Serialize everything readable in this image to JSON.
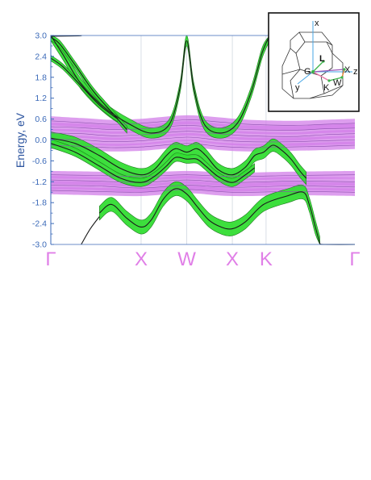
{
  "chart_data": {
    "type": "line",
    "title": "",
    "ylabel": "Energy, eV",
    "xlabel": "",
    "ylim": [
      -3.0,
      3.0
    ],
    "yticks": [
      "3.0",
      "2.4",
      "1.8",
      "1.2",
      "0.6",
      "0.0",
      "-0.6",
      "-1.2",
      "-1.8",
      "-2.4",
      "-3.0"
    ],
    "x_range": [
      0,
      100
    ],
    "kpoints": [
      {
        "label": "Γ",
        "x": 0
      },
      {
        "label": "X",
        "x": 29.7
      },
      {
        "label": "W",
        "x": 44.7
      },
      {
        "label": "X",
        "x": 59.7
      },
      {
        "label": "K",
        "x": 70.8
      },
      {
        "label": "Γ",
        "x": 100
      }
    ],
    "colors": {
      "spin_up_band": "#33dd33",
      "spin_down_band": "#d27ee8",
      "line": "#1a1a1a",
      "kpoint_label": "#e07fe7",
      "axis": "#3a69b8"
    },
    "series": [
      {
        "kind": "violet-ribbon",
        "points": [
          [
            0,
            0.55
          ],
          [
            10,
            0.5
          ],
          [
            20,
            0.45
          ],
          [
            30,
            0.48
          ],
          [
            44.7,
            0.58
          ],
          [
            55,
            0.52
          ],
          [
            65,
            0.45
          ],
          [
            80,
            0.42
          ],
          [
            90,
            0.45
          ],
          [
            100,
            0.48
          ]
        ],
        "halfwidth": 0.13
      },
      {
        "kind": "violet-ribbon",
        "points": [
          [
            0,
            0.38
          ],
          [
            10,
            0.35
          ],
          [
            20,
            0.3
          ],
          [
            30,
            0.32
          ],
          [
            44.7,
            0.42
          ],
          [
            55,
            0.35
          ],
          [
            65,
            0.3
          ],
          [
            80,
            0.28
          ],
          [
            90,
            0.32
          ],
          [
            100,
            0.34
          ]
        ],
        "halfwidth": 0.12
      },
      {
        "kind": "violet-ribbon",
        "points": [
          [
            0,
            0.2
          ],
          [
            10,
            0.18
          ],
          [
            20,
            0.12
          ],
          [
            30,
            0.15
          ],
          [
            44.7,
            0.25
          ],
          [
            55,
            0.18
          ],
          [
            65,
            0.12
          ],
          [
            80,
            0.1
          ],
          [
            90,
            0.15
          ],
          [
            100,
            0.18
          ]
        ],
        "halfwidth": 0.12
      },
      {
        "kind": "violet-ribbon",
        "points": [
          [
            0,
            0.02
          ],
          [
            10,
            0.0
          ],
          [
            20,
            -0.05
          ],
          [
            30,
            -0.02
          ],
          [
            44.7,
            0.08
          ],
          [
            55,
            0.0
          ],
          [
            65,
            -0.05
          ],
          [
            80,
            -0.05
          ],
          [
            90,
            -0.02
          ],
          [
            100,
            0.0
          ]
        ],
        "halfwidth": 0.12
      },
      {
        "kind": "violet-ribbon",
        "points": [
          [
            0,
            -0.15
          ],
          [
            10,
            -0.18
          ],
          [
            20,
            -0.22
          ],
          [
            30,
            -0.2
          ],
          [
            44.7,
            -0.1
          ],
          [
            55,
            -0.18
          ],
          [
            65,
            -0.22
          ],
          [
            80,
            -0.2
          ],
          [
            90,
            -0.18
          ],
          [
            100,
            -0.15
          ]
        ],
        "halfwidth": 0.11
      },
      {
        "kind": "violet-ribbon",
        "points": [
          [
            0,
            -1.0
          ],
          [
            15,
            -1.02
          ],
          [
            29.7,
            -1.05
          ],
          [
            44.7,
            -1.0
          ],
          [
            59.7,
            -1.05
          ],
          [
            80,
            -1.02
          ],
          [
            100,
            -1.0
          ]
        ],
        "halfwidth": 0.11
      },
      {
        "kind": "violet-ribbon",
        "points": [
          [
            0,
            -1.15
          ],
          [
            15,
            -1.18
          ],
          [
            29.7,
            -1.22
          ],
          [
            44.7,
            -1.15
          ],
          [
            59.7,
            -1.22
          ],
          [
            80,
            -1.18
          ],
          [
            100,
            -1.2
          ]
        ],
        "halfwidth": 0.12
      },
      {
        "kind": "violet-ribbon",
        "points": [
          [
            0,
            -1.3
          ],
          [
            15,
            -1.32
          ],
          [
            29.7,
            -1.38
          ],
          [
            44.7,
            -1.3
          ],
          [
            59.7,
            -1.36
          ],
          [
            80,
            -1.32
          ],
          [
            100,
            -1.35
          ]
        ],
        "halfwidth": 0.12
      },
      {
        "kind": "violet-ribbon",
        "points": [
          [
            0,
            -1.45
          ],
          [
            15,
            -1.48
          ],
          [
            29.7,
            -1.5
          ],
          [
            44.7,
            -1.42
          ],
          [
            59.7,
            -1.5
          ],
          [
            80,
            -1.48
          ],
          [
            100,
            -1.5
          ]
        ],
        "halfwidth": 0.11
      },
      {
        "kind": "green-ribbon",
        "points": [
          [
            0,
            3.0
          ],
          [
            4,
            2.45
          ],
          [
            10,
            1.6
          ],
          [
            18,
            0.9
          ],
          [
            26,
            0.45
          ],
          [
            33,
            0.2
          ],
          [
            39,
            0.45
          ],
          [
            42.5,
            1.5
          ],
          [
            44.7,
            2.85
          ],
          [
            47,
            1.5
          ],
          [
            50.5,
            0.45
          ],
          [
            56,
            0.2
          ],
          [
            61.5,
            0.5
          ],
          [
            66,
            1.4
          ],
          [
            69.5,
            2.5
          ],
          [
            72,
            3.0
          ]
        ],
        "halfwidth": 0.15
      },
      {
        "kind": "green-ribbon",
        "points": [
          [
            0,
            2.95
          ],
          [
            3,
            2.75
          ],
          [
            8,
            2.15
          ],
          [
            14,
            1.4
          ],
          [
            20,
            0.8
          ],
          [
            25,
            0.3
          ]
        ],
        "halfwidth": 0.1
      },
      {
        "kind": "green-ribbon",
        "points": [
          [
            0,
            2.35
          ],
          [
            4,
            2.1
          ],
          [
            10,
            1.55
          ],
          [
            16,
            1.0
          ],
          [
            22,
            0.6
          ]
        ],
        "halfwidth": 0.08
      },
      {
        "kind": "green-ribbon",
        "points": [
          [
            0,
            0.05
          ],
          [
            8,
            -0.1
          ],
          [
            16,
            -0.45
          ],
          [
            23,
            -0.82
          ],
          [
            29.7,
            -1.0
          ],
          [
            34,
            -0.85
          ],
          [
            38,
            -0.45
          ],
          [
            41,
            -0.25
          ],
          [
            44.7,
            -0.35
          ],
          [
            48,
            -0.25
          ],
          [
            51,
            -0.45
          ],
          [
            55,
            -0.85
          ],
          [
            59.7,
            -1.0
          ],
          [
            64,
            -0.78
          ],
          [
            67,
            -0.45
          ],
          [
            70,
            -0.35
          ],
          [
            73,
            -0.15
          ],
          [
            76,
            -0.3
          ],
          [
            79,
            -0.55
          ],
          [
            82,
            -0.9
          ],
          [
            84,
            -1.1
          ]
        ],
        "halfwidth": 0.18
      },
      {
        "kind": "green-ribbon",
        "points": [
          [
            0,
            -0.1
          ],
          [
            8,
            -0.35
          ],
          [
            16,
            -0.75
          ],
          [
            23,
            -1.1
          ],
          [
            29.7,
            -1.22
          ],
          [
            34,
            -1.05
          ],
          [
            38,
            -0.75
          ],
          [
            41,
            -0.5
          ],
          [
            44.7,
            -0.55
          ],
          [
            48,
            -0.55
          ],
          [
            51,
            -0.75
          ],
          [
            55,
            -1.05
          ],
          [
            59.7,
            -1.22
          ],
          [
            64,
            -1.0
          ],
          [
            67,
            -0.8
          ]
        ],
        "halfwidth": 0.12
      },
      {
        "kind": "green-ribbon",
        "points": [
          [
            16,
            -2.1
          ],
          [
            20,
            -1.85
          ],
          [
            25,
            -2.25
          ],
          [
            29.7,
            -2.5
          ],
          [
            33,
            -2.3
          ],
          [
            37,
            -1.7
          ],
          [
            41,
            -1.4
          ],
          [
            44.7,
            -1.55
          ],
          [
            48,
            -1.9
          ],
          [
            52,
            -2.3
          ],
          [
            56,
            -2.5
          ],
          [
            59.7,
            -2.55
          ],
          [
            64,
            -2.35
          ],
          [
            70,
            -1.85
          ],
          [
            78,
            -1.6
          ],
          [
            83,
            -1.5
          ],
          [
            85,
            -1.85
          ],
          [
            87,
            -2.5
          ],
          [
            88.5,
            -2.98
          ]
        ],
        "halfwidth": 0.2
      },
      {
        "kind": "dark-line",
        "points": [
          [
            10,
            -3.0
          ],
          [
            13,
            -2.55
          ],
          [
            16,
            -2.2
          ]
        ],
        "halfwidth": 0
      },
      {
        "kind": "dark-line",
        "points": [
          [
            88.5,
            -2.98
          ],
          [
            90,
            -3.0
          ],
          [
            100,
            -3.0
          ]
        ],
        "halfwidth": 0
      },
      {
        "kind": "dark-line",
        "points": [
          [
            0,
            2.98
          ],
          [
            9,
            2.99
          ],
          [
            10,
            3.0
          ]
        ],
        "halfwidth": 0
      }
    ],
    "brillouin_zone_inset": {
      "labels": [
        "x",
        "L",
        "G",
        "X",
        "K",
        "W",
        "y",
        "z"
      ]
    }
  }
}
